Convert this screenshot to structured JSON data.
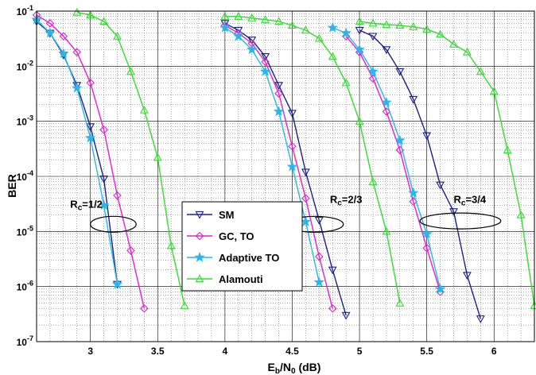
{
  "chart_data": {
    "type": "line",
    "xlabel": {
      "main": "E",
      "sub": "b",
      "mid": "/N",
      "sub2": "0",
      "tail": " (dB)"
    },
    "ylabel": "BER",
    "xlim": [
      2.6,
      6.3
    ],
    "ylim": [
      1e-07,
      0.1
    ],
    "yscale": "log",
    "grid": true,
    "x_ticks": [
      3,
      3.5,
      4,
      4.5,
      5,
      5.5,
      6
    ],
    "x_tick_labels": [
      "3",
      "3.5",
      "4",
      "4.5",
      "5",
      "5.5",
      "6"
    ],
    "y_ticks": [
      {
        "exp": -1,
        "base": "10",
        "sup": "-1"
      },
      {
        "exp": -2,
        "base": "10",
        "sup": "-2"
      },
      {
        "exp": -3,
        "base": "10",
        "sup": "-3"
      },
      {
        "exp": -4,
        "base": "10",
        "sup": "-4"
      },
      {
        "exp": -5,
        "base": "10",
        "sup": "-5"
      },
      {
        "exp": -6,
        "base": "10",
        "sup": "-6"
      },
      {
        "exp": -7,
        "base": "10",
        "sup": "-7"
      }
    ],
    "legend": {
      "position": "center",
      "entries": [
        "SM",
        "GC, TO",
        "Adaptive TO",
        "Alamouti"
      ]
    },
    "annotations": [
      {
        "text_main": "R",
        "text_sub": "c",
        "text_tail": "=1/2",
        "x": 2.85,
        "y": 2.7e-05,
        "ellipse": {
          "cx": 3.17,
          "cy": 1.35e-05,
          "rx": 0.17
        }
      },
      {
        "text_main": "R",
        "text_sub": "c",
        "text_tail": "=2/3",
        "x": 4.78,
        "y": 3.3e-05,
        "ellipse": {
          "cx": 4.67,
          "cy": 1.35e-05,
          "rx": 0.21
        }
      },
      {
        "text_main": "R",
        "text_sub": "c",
        "text_tail": "=3/4",
        "x": 5.7,
        "y": 3.3e-05,
        "ellipse": {
          "cx": 5.75,
          "cy": 1.55e-05,
          "rx": 0.3
        }
      }
    ],
    "series": [
      {
        "name": "SM",
        "color": "#1b1f8a",
        "marker": "triangle-down",
        "curves": [
          {
            "x": [
              2.6,
              2.7,
              2.8,
              2.9,
              3.0,
              3.1,
              3.2
            ],
            "y": [
              0.065,
              0.04,
              0.016,
              0.0045,
              0.0008,
              9e-05,
              1.1e-06
            ]
          },
          {
            "x": [
              4.0,
              4.1,
              4.2,
              4.3,
              4.4,
              4.5,
              4.6,
              4.7,
              4.8,
              4.9
            ],
            "y": [
              0.06,
              0.045,
              0.03,
              0.015,
              0.0045,
              0.0014,
              0.00012,
              1.6e-05,
              2e-06,
              3e-07
            ]
          },
          {
            "x": [
              5.0,
              5.1,
              5.2,
              5.3,
              5.4,
              5.5,
              5.6,
              5.7,
              5.8,
              5.9
            ],
            "y": [
              0.045,
              0.035,
              0.02,
              0.008,
              0.0025,
              0.00055,
              7e-05,
              2.3e-05,
              1.6e-06,
              2.6e-07
            ]
          }
        ]
      },
      {
        "name": "GC, TO",
        "color": "#e020d0",
        "marker": "diamond",
        "curves": [
          {
            "x": [
              2.6,
              2.7,
              2.8,
              2.9,
              3.0,
              3.1,
              3.2,
              3.3,
              3.4
            ],
            "y": [
              0.085,
              0.06,
              0.035,
              0.018,
              0.005,
              0.0007,
              4.5e-05,
              4.5e-06,
              4e-07
            ]
          },
          {
            "x": [
              4.0,
              4.1,
              4.2,
              4.3,
              4.4,
              4.5,
              4.6,
              4.7,
              4.8
            ],
            "y": [
              0.055,
              0.04,
              0.026,
              0.012,
              0.0032,
              0.00035,
              4e-05,
              3.5e-06,
              4e-07
            ]
          },
          {
            "x": [
              4.9,
              5.0,
              5.1,
              5.2,
              5.3,
              5.4,
              5.5,
              5.6
            ],
            "y": [
              0.035,
              0.018,
              0.006,
              0.0015,
              0.0003,
              3.5e-05,
              5e-06,
              8e-07
            ]
          }
        ]
      },
      {
        "name": "Adaptive TO",
        "color": "#2ab6e8",
        "marker": "star",
        "curves": [
          {
            "x": [
              2.6,
              2.7,
              2.8,
              2.9,
              3.0,
              3.1,
              3.2
            ],
            "y": [
              0.07,
              0.04,
              0.017,
              0.004,
              0.0005,
              3e-05,
              1.1e-06
            ]
          },
          {
            "x": [
              4.0,
              4.1,
              4.2,
              4.3,
              4.4,
              4.5,
              4.6,
              4.7
            ],
            "y": [
              0.05,
              0.035,
              0.02,
              0.008,
              0.0015,
              0.00015,
              1.5e-05,
              1.2e-06
            ]
          },
          {
            "x": [
              4.8,
              4.9,
              5.0,
              5.1,
              5.2,
              5.3,
              5.4,
              5.5,
              5.6
            ],
            "y": [
              0.05,
              0.04,
              0.02,
              0.008,
              0.0022,
              0.00045,
              5e-05,
              9e-06,
              9e-07
            ]
          }
        ]
      },
      {
        "name": "Alamouti",
        "color": "#33dd2e",
        "marker": "triangle-up",
        "curves": [
          {
            "x": [
              2.9,
              3.0,
              3.1,
              3.2,
              3.3,
              3.4,
              3.5,
              3.6,
              3.7
            ],
            "y": [
              0.095,
              0.085,
              0.065,
              0.035,
              0.008,
              0.0016,
              0.00022,
              5.5e-06,
              4.5e-07
            ]
          },
          {
            "x": [
              4.0,
              4.1,
              4.2,
              4.3,
              4.4,
              4.5,
              4.6,
              4.7,
              4.8,
              4.9,
              5.0,
              5.1,
              5.2,
              5.3
            ],
            "y": [
              0.08,
              0.08,
              0.075,
              0.07,
              0.065,
              0.055,
              0.045,
              0.032,
              0.015,
              0.005,
              0.001,
              8e-05,
              1e-05,
              5e-07
            ]
          },
          {
            "x": [
              5.0,
              5.1,
              5.2,
              5.3,
              5.4,
              5.5,
              5.6,
              5.7,
              5.8,
              5.9,
              6.0,
              6.1,
              6.2,
              6.3
            ],
            "y": [
              0.065,
              0.06,
              0.057,
              0.055,
              0.052,
              0.047,
              0.038,
              0.025,
              0.018,
              0.008,
              0.0035,
              0.0003,
              2e-05,
              4.5e-07
            ]
          }
        ]
      }
    ]
  }
}
